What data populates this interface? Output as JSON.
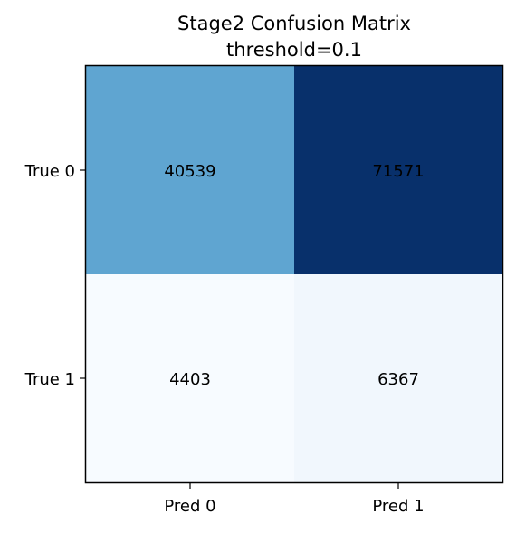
{
  "chart_data": {
    "type": "heatmap",
    "title": "Stage2 Confusion Matrix",
    "subtitle": "threshold=0.1",
    "x_categories": [
      "Pred 0",
      "Pred 1"
    ],
    "y_categories": [
      "True 0",
      "True 1"
    ],
    "values": [
      [
        40539,
        71571
      ],
      [
        4403,
        6367
      ]
    ],
    "value_labels": [
      [
        "40539",
        "71571"
      ],
      [
        "4403",
        "6367"
      ]
    ],
    "colormap": "Blues",
    "colors": {
      "low": "#f7fbff",
      "mid": "#6baed6",
      "high": "#08306b"
    },
    "grid": false,
    "legend": "none"
  }
}
